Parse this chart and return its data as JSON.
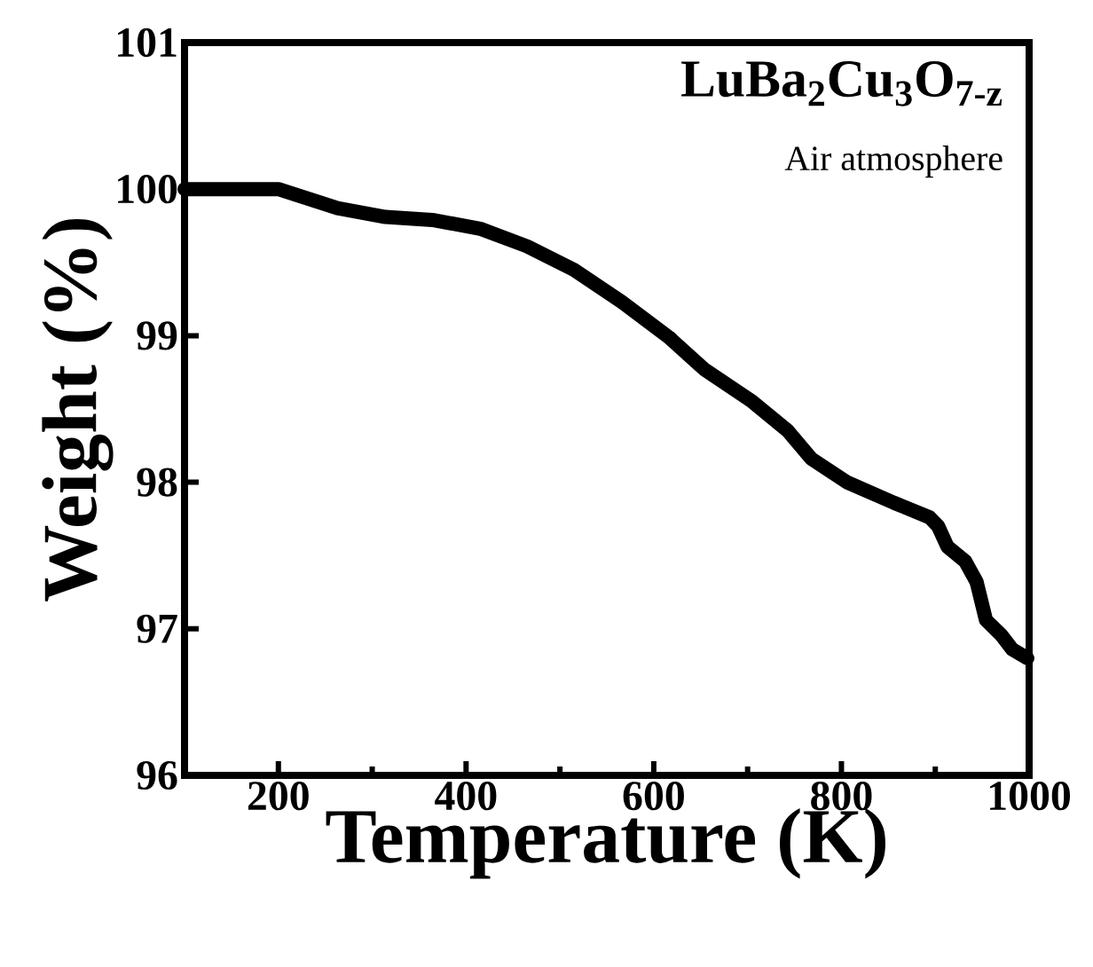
{
  "chart_data": {
    "type": "line",
    "xlabel": "Temperature (K)",
    "ylabel": "Weight (%)",
    "annotations": [
      "LuBa$_{2}$Cu$_{3}$O$_{7-z}$",
      "Air atmosphere"
    ],
    "xlim": [
      100,
      1000
    ],
    "xticks": [
      200,
      400,
      600,
      800,
      1000
    ],
    "ylim": [
      96,
      101
    ],
    "yticks": [
      96,
      97,
      98,
      99,
      100,
      101
    ],
    "series": [
      {
        "color": "#000000",
        "x": [
          100,
          200,
          263,
          314,
          364,
          415,
          465,
          515,
          566,
          616,
          654,
          705,
          743,
          768,
          806,
          856,
          894,
          903,
          913,
          932,
          944,
          954,
          970,
          982,
          998
        ],
        "values": [
          100.0,
          100.0,
          99.87,
          99.81,
          99.79,
          99.73,
          99.61,
          99.45,
          99.23,
          98.99,
          98.77,
          98.55,
          98.35,
          98.16,
          98.0,
          97.86,
          97.76,
          97.7,
          97.56,
          97.46,
          97.32,
          97.06,
          96.96,
          96.86,
          96.8
        ]
      }
    ]
  }
}
